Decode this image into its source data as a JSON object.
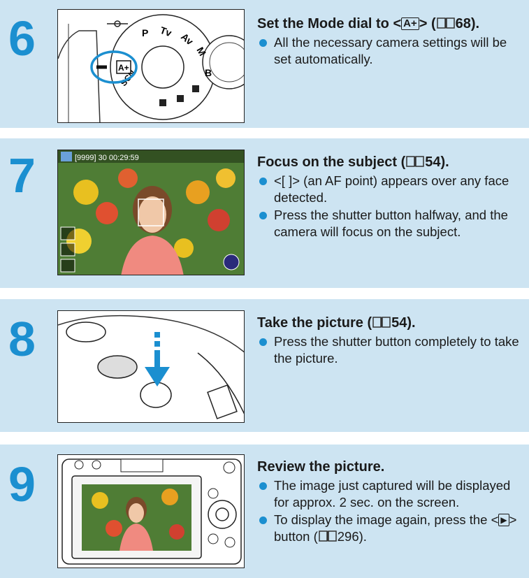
{
  "steps": [
    {
      "number": "6",
      "title_pre": "Set the Mode dial to <",
      "title_glyph": "A+",
      "title_post": "> (",
      "title_page": "68).",
      "bullets": [
        "All the necessary camera settings will be set automatically."
      ],
      "illus_labels": {
        "dial_p": "P",
        "dial_tv": "Tv",
        "dial_av": "Av",
        "dial_m": "M",
        "dial_b": "B",
        "dial_scn": "SCN",
        "dial_auto": "A+"
      }
    },
    {
      "number": "7",
      "title_pre": "Focus on the subject (",
      "title_page": "54).",
      "bullets": [
        "<[ ]> (an AF point) appears over any face detected.",
        "Press the shutter button halfway, and the camera will focus on the subject."
      ],
      "screen_status": "[9999] 30 00:29:59"
    },
    {
      "number": "8",
      "title_pre": "Take the picture (",
      "title_page": "54).",
      "bullets": [
        "Press the shutter button completely to take the picture."
      ]
    },
    {
      "number": "9",
      "title": "Review the picture.",
      "bullets": [
        "The image just captured will be displayed for approx. 2 sec. on the screen.",
        "To display the image again, press the <",
        "> button (",
        "296)."
      ]
    }
  ],
  "colors": {
    "band": "#cde4f2",
    "accent": "#1b8fd0"
  }
}
